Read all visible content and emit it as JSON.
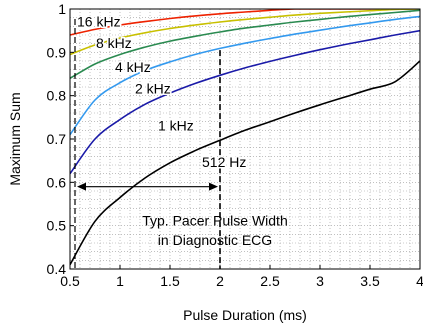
{
  "chart_data": {
    "type": "line",
    "xlabel": "Pulse Duration (ms)",
    "ylabel": "Maximum Sum",
    "xlim": [
      0.5,
      4
    ],
    "ylim": [
      0.4,
      1
    ],
    "x_ticks": [
      "0.5",
      "1",
      "1.5",
      "2",
      "2.5",
      "3",
      "3.5",
      "4"
    ],
    "y_ticks": [
      "0.4",
      "0.5",
      "0.6",
      "0.7",
      "0.8",
      "0.9",
      "1"
    ],
    "grid": true,
    "x": [
      0.5,
      0.75,
      1,
      1.25,
      1.5,
      1.75,
      2,
      2.25,
      2.5,
      2.75,
      3,
      3.25,
      3.5,
      3.75,
      4
    ],
    "series": [
      {
        "name": "16 kHz",
        "color": "#ee2200",
        "values": [
          0.94,
          0.953,
          0.963,
          0.971,
          0.978,
          0.984,
          0.989,
          0.993,
          0.997,
          1.0,
          1.0,
          1.0,
          1.0,
          1.0,
          1.0
        ]
      },
      {
        "name": "8 kHz",
        "color": "#c8c000",
        "values": [
          0.895,
          0.917,
          0.933,
          0.945,
          0.955,
          0.963,
          0.97,
          0.976,
          0.981,
          0.986,
          0.99,
          0.993,
          0.996,
          0.999,
          1.0
        ]
      },
      {
        "name": "4 kHz",
        "color": "#2a8a50",
        "values": [
          0.84,
          0.873,
          0.895,
          0.912,
          0.926,
          0.937,
          0.947,
          0.956,
          0.963,
          0.97,
          0.976,
          0.982,
          0.987,
          0.992,
          0.997
        ]
      },
      {
        "name": "2 kHz",
        "color": "#3399ee",
        "values": [
          0.71,
          0.79,
          0.83,
          0.858,
          0.878,
          0.895,
          0.909,
          0.921,
          0.932,
          0.942,
          0.951,
          0.96,
          0.968,
          0.976,
          0.983
        ]
      },
      {
        "name": "1 kHz",
        "color": "#1a1aa8",
        "values": [
          0.62,
          0.7,
          0.745,
          0.78,
          0.806,
          0.828,
          0.847,
          0.864,
          0.879,
          0.893,
          0.906,
          0.918,
          0.929,
          0.94,
          0.95
        ]
      },
      {
        "name": "512 Hz",
        "color": "#000000",
        "values": [
          0.41,
          0.51,
          0.565,
          0.61,
          0.645,
          0.673,
          0.697,
          0.72,
          0.74,
          0.76,
          0.779,
          0.797,
          0.815,
          0.832,
          0.88
        ]
      }
    ],
    "label_positions": [
      {
        "series": "16 kHz",
        "x": 0.57,
        "y": 0.96
      },
      {
        "series": "8 kHz",
        "x": 0.76,
        "y": 0.91
      },
      {
        "series": "4 kHz",
        "x": 0.95,
        "y": 0.855
      },
      {
        "series": "2 kHz",
        "x": 1.15,
        "y": 0.805
      },
      {
        "series": "1 kHz",
        "x": 1.38,
        "y": 0.72
      },
      {
        "series": "512 Hz",
        "x": 1.82,
        "y": 0.635
      }
    ],
    "annotation": {
      "lines": [
        "Typ. Pacer Pulse Width",
        "in Diagnostic ECG"
      ],
      "x_range": [
        0.55,
        2.0
      ],
      "arrow_y": 0.59,
      "text_x": 1.95,
      "text_y": [
        0.5,
        0.455
      ]
    }
  }
}
